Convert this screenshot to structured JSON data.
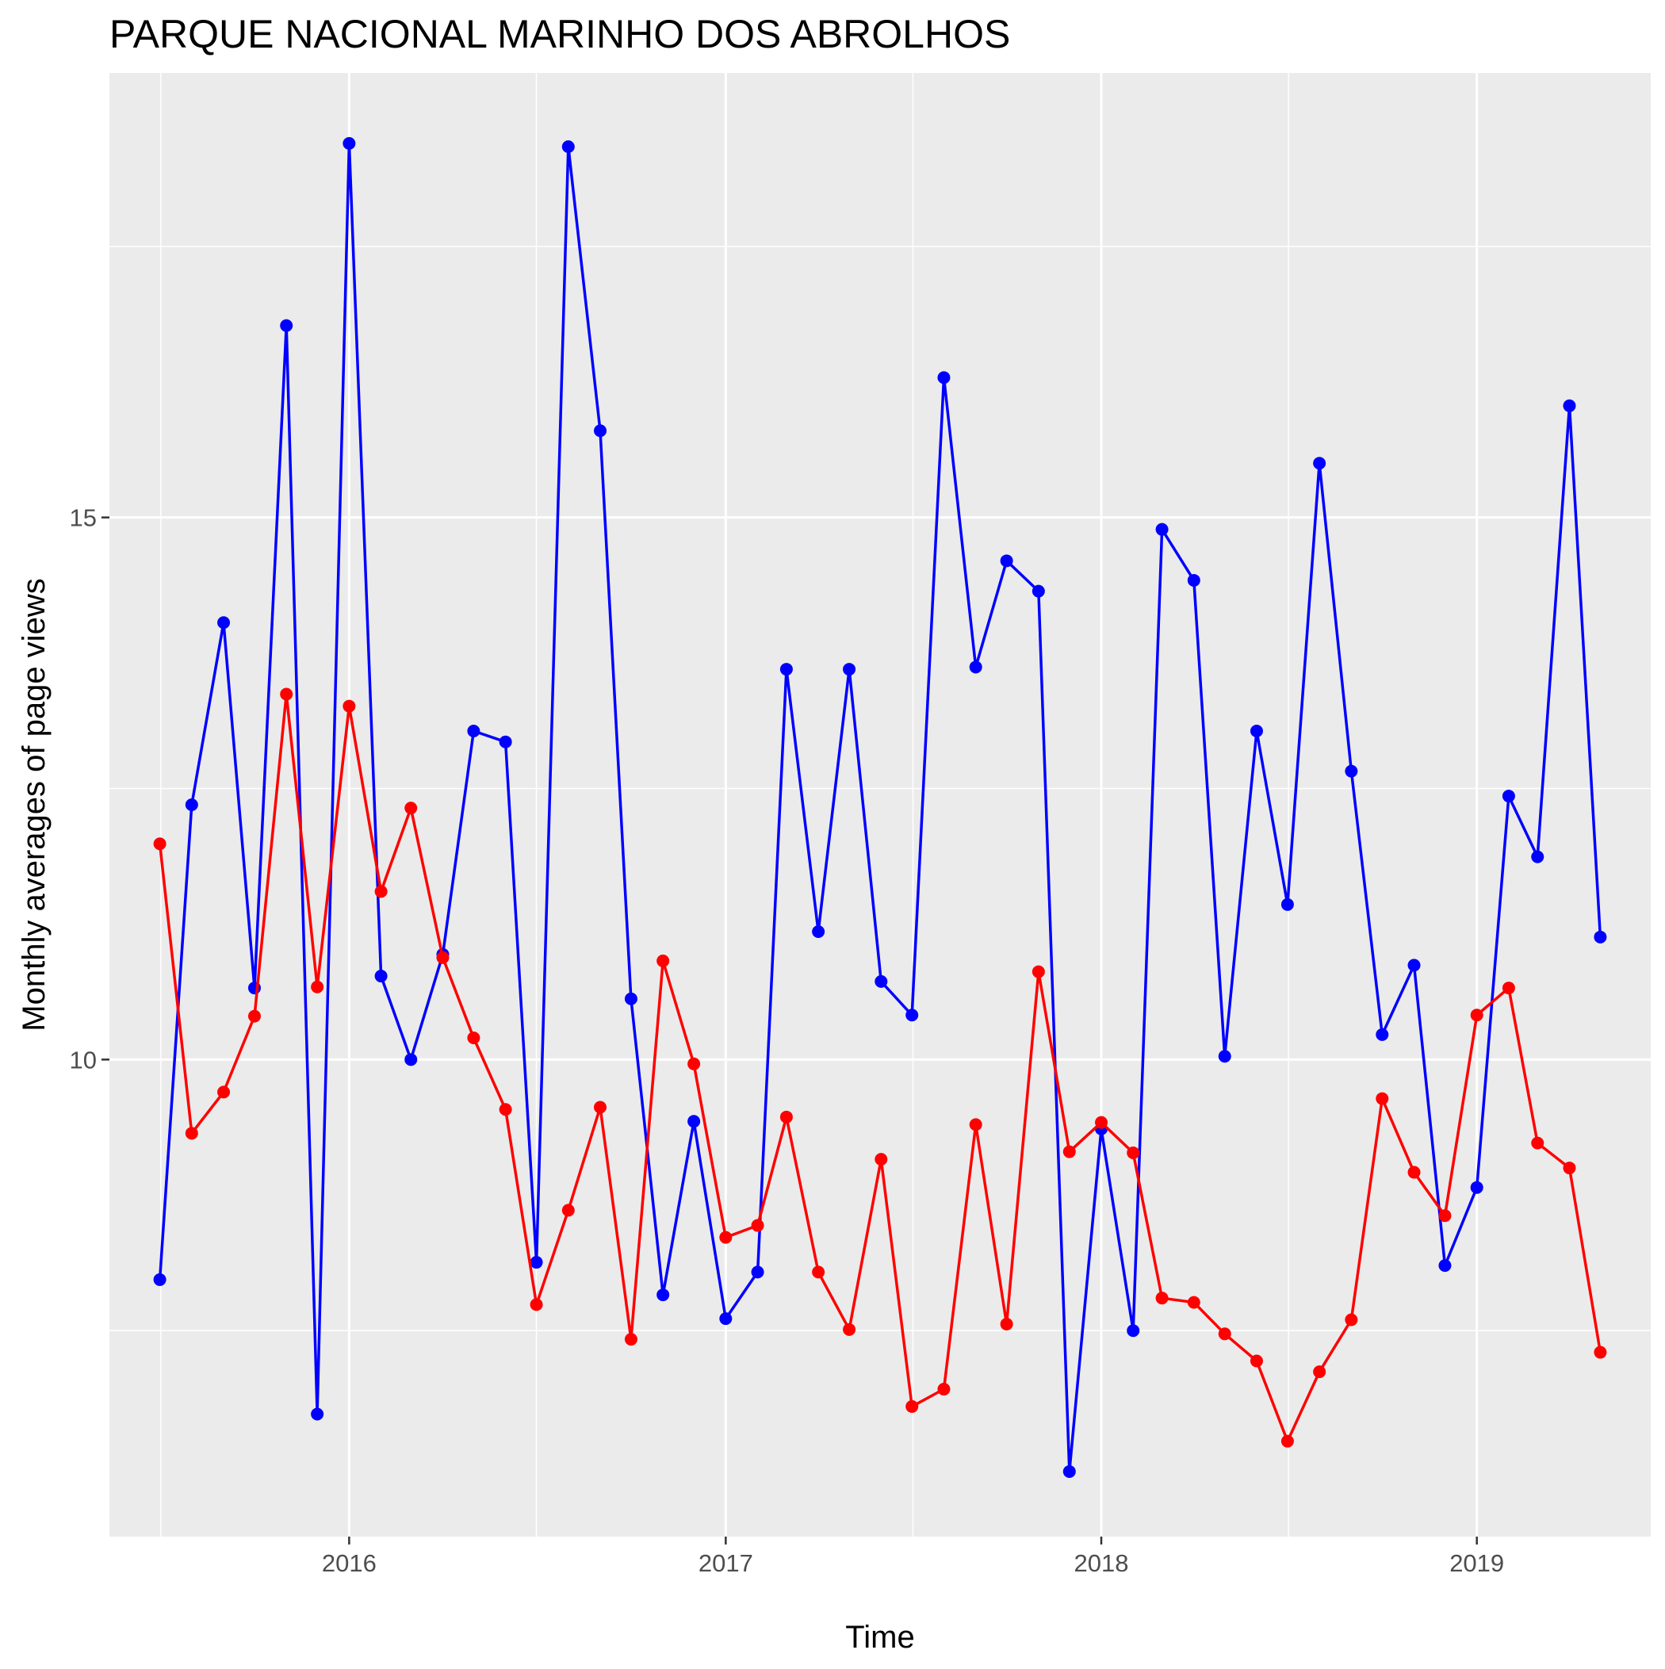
{
  "chart_data": {
    "type": "line",
    "title": "PARQUE NACIONAL MARINHO DOS ABROLHOS",
    "xlabel": "Time",
    "ylabel": "Monthly averages of page views",
    "x_axis": {
      "type": "date",
      "range": [
        "2015-05-13",
        "2019-06-19"
      ],
      "ticks": [
        "2016-01-01",
        "2017-01-01",
        "2018-01-01",
        "2019-01-01"
      ],
      "tick_labels": [
        "2016",
        "2017",
        "2018",
        "2019"
      ],
      "minor_ticks": [
        "2015-07-02",
        "2016-07-01",
        "2017-07-02",
        "2018-07-02"
      ]
    },
    "y_axis": {
      "range": [
        5.6,
        19.1
      ],
      "ticks": [
        10,
        15
      ],
      "tick_labels": [
        "10",
        "15"
      ],
      "minor_ticks": [
        7.5,
        12.5,
        17.5
      ]
    },
    "grid": true,
    "legend": "none",
    "x": [
      "2015-07-01",
      "2015-08-01",
      "2015-09-01",
      "2015-10-01",
      "2015-11-01",
      "2015-12-01",
      "2016-01-01",
      "2016-02-01",
      "2016-03-01",
      "2016-04-01",
      "2016-05-01",
      "2016-06-01",
      "2016-07-01",
      "2016-08-01",
      "2016-09-01",
      "2016-10-01",
      "2016-11-01",
      "2016-12-01",
      "2017-01-01",
      "2017-02-01",
      "2017-03-01",
      "2017-04-01",
      "2017-05-01",
      "2017-06-01",
      "2017-07-01",
      "2017-08-01",
      "2017-09-01",
      "2017-10-01",
      "2017-11-01",
      "2017-12-01",
      "2018-01-01",
      "2018-02-01",
      "2018-03-01",
      "2018-04-01",
      "2018-05-01",
      "2018-06-01",
      "2018-07-01",
      "2018-08-01",
      "2018-09-01",
      "2018-10-01",
      "2018-11-01",
      "2018-12-01",
      "2019-01-01",
      "2019-02-01",
      "2019-03-01",
      "2019-04-01",
      "2019-05-01"
    ],
    "series": [
      {
        "color": "#0000ff",
        "values": [
          7.97,
          12.35,
          14.03,
          10.66,
          16.77,
          6.73,
          18.45,
          10.77,
          10.0,
          10.97,
          13.03,
          12.93,
          8.13,
          18.42,
          15.8,
          10.56,
          7.83,
          9.43,
          7.61,
          8.04,
          13.6,
          11.18,
          13.6,
          10.72,
          10.41,
          16.29,
          13.62,
          14.6,
          14.32,
          6.2,
          9.36,
          7.5,
          14.89,
          14.42,
          10.03,
          13.03,
          11.43,
          15.5,
          12.66,
          10.23,
          10.87,
          8.1,
          8.82,
          12.43,
          11.87,
          16.03,
          11.13
        ]
      },
      {
        "color": "#ff0000",
        "values": [
          11.99,
          9.32,
          9.7,
          10.4,
          13.37,
          10.67,
          13.26,
          11.55,
          12.32,
          10.94,
          10.2,
          9.54,
          7.74,
          8.61,
          9.56,
          7.42,
          10.91,
          9.96,
          8.36,
          8.47,
          9.47,
          8.04,
          7.51,
          9.08,
          6.8,
          6.96,
          9.4,
          7.56,
          10.81,
          9.15,
          9.42,
          9.14,
          7.8,
          7.76,
          7.47,
          7.22,
          6.48,
          7.12,
          7.6,
          9.64,
          8.96,
          8.56,
          10.41,
          10.66,
          9.23,
          9.0,
          7.3
        ]
      }
    ]
  }
}
